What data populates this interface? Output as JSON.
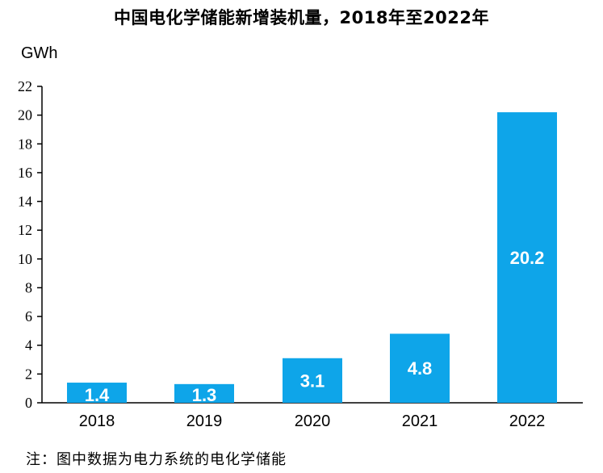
{
  "chart_data": {
    "type": "bar",
    "title": "中国电化学储能新增装机量，2018年至2022年",
    "ylabel": "GWh",
    "xlabel": "",
    "categories": [
      "2018",
      "2019",
      "2020",
      "2021",
      "2022"
    ],
    "values": [
      1.4,
      1.3,
      3.1,
      4.8,
      20.2
    ],
    "data_labels": [
      "1.4",
      "1.3",
      "3.1",
      "4.8",
      "20.2"
    ],
    "ylim": [
      0,
      22
    ],
    "yticks": [
      "0",
      "2",
      "4",
      "6",
      "8",
      "10",
      "12",
      "14",
      "16",
      "18",
      "20",
      "22"
    ],
    "grid": false,
    "legend": "none",
    "bar_color": "#0EA5E9",
    "note": "注：图中数据为电力系统的电化学储能"
  }
}
